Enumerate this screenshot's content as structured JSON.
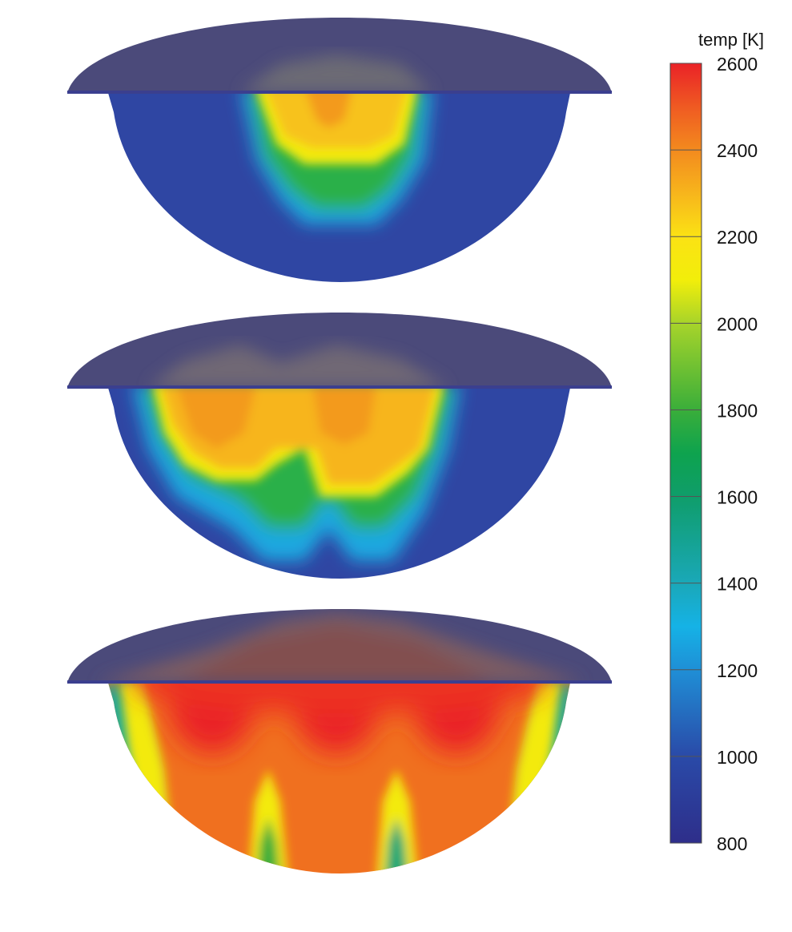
{
  "colorbar": {
    "title": "temp [K]",
    "min": 800,
    "max": 2600,
    "ticks": [
      800,
      1000,
      1200,
      1400,
      1600,
      1800,
      2000,
      2200,
      2400,
      2600
    ],
    "stops": [
      {
        "value": 800,
        "color": "#2e2e8a"
      },
      {
        "value": 1000,
        "color": "#2a4aa8"
      },
      {
        "value": 1200,
        "color": "#1f8fd6"
      },
      {
        "value": 1300,
        "color": "#15b2e6"
      },
      {
        "value": 1400,
        "color": "#1aa8b8"
      },
      {
        "value": 1600,
        "color": "#0f9d6a"
      },
      {
        "value": 1700,
        "color": "#0ea34e"
      },
      {
        "value": 1800,
        "color": "#3aae3a"
      },
      {
        "value": 2000,
        "color": "#a7d42a"
      },
      {
        "value": 2100,
        "color": "#f2ee0a"
      },
      {
        "value": 2200,
        "color": "#fbe214"
      },
      {
        "value": 2300,
        "color": "#f7b51c"
      },
      {
        "value": 2400,
        "color": "#f38a1e"
      },
      {
        "value": 2500,
        "color": "#ef5a22"
      },
      {
        "value": 2600,
        "color": "#ea2227"
      }
    ]
  },
  "panels": [
    {
      "name": "panel-1",
      "lid_color": "#4b4a7a",
      "base_color": "#2f46a3"
    },
    {
      "name": "panel-2",
      "lid_color": "#4b4a7a",
      "base_color": "#2f46a3"
    },
    {
      "name": "panel-3",
      "lid_color": "#4b4a7a",
      "base_color": "#f0701f"
    }
  ]
}
